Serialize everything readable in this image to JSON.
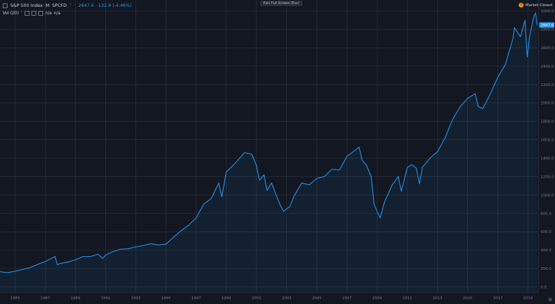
{
  "header": {
    "symbol_name": "S&P 500 Index",
    "interval": "M",
    "ticker": "SPCFD",
    "price": "2847.6",
    "change": "-132.8 (-4.46%)"
  },
  "volume_indicator": {
    "label": "Vol (20)",
    "value1": "n/a",
    "value2": "n/a"
  },
  "tooltip": "Exit Full Screen (Esc)",
  "market_status": {
    "icon": "clock-icon",
    "label": "Market Closed"
  },
  "settings_icon": "gear-icon",
  "colors": {
    "background": "#131722",
    "line": "#2196f3",
    "grid": "#2a2e39",
    "text": "#d1d4dc",
    "axis_text": "#787b86",
    "accent": "#ff9800"
  },
  "chart_data": {
    "type": "area",
    "title": "",
    "xlabel": "",
    "ylabel": "",
    "xlim": [
      1984,
      2019.7
    ],
    "ylim": [
      -60,
      3120
    ],
    "grid": true,
    "x_ticks": [
      {
        "value": 1985,
        "label": "1985"
      },
      {
        "value": 1987,
        "label": "1987"
      },
      {
        "value": 1989,
        "label": "1989"
      },
      {
        "value": 1991,
        "label": "1991"
      },
      {
        "value": 1993,
        "label": "1993"
      },
      {
        "value": 1995,
        "label": "1995"
      },
      {
        "value": 1997,
        "label": "1997"
      },
      {
        "value": 1999,
        "label": "1999"
      },
      {
        "value": 2001,
        "label": "2001"
      },
      {
        "value": 2003,
        "label": "2003"
      },
      {
        "value": 2005,
        "label": "2005"
      },
      {
        "value": 2007,
        "label": "2007"
      },
      {
        "value": 2009,
        "label": "2009"
      },
      {
        "value": 2011,
        "label": "2011"
      },
      {
        "value": 2013,
        "label": "2013"
      },
      {
        "value": 2015,
        "label": "2015"
      },
      {
        "value": 2017,
        "label": "2017"
      },
      {
        "value": 2019,
        "label": "2019"
      }
    ],
    "y_ticks": [
      {
        "value": 0,
        "label": "0.0"
      },
      {
        "value": 200,
        "label": "200.0"
      },
      {
        "value": 400,
        "label": "400.0"
      },
      {
        "value": 600,
        "label": "600.0"
      },
      {
        "value": 800,
        "label": "800.0"
      },
      {
        "value": 1000,
        "label": "1000.0"
      },
      {
        "value": 1200,
        "label": "1200.0"
      },
      {
        "value": 1400,
        "label": "1400.0"
      },
      {
        "value": 1600,
        "label": "1600.0"
      },
      {
        "value": 1800,
        "label": "1800.0"
      },
      {
        "value": 2000,
        "label": "2000.0"
      },
      {
        "value": 2200,
        "label": "2200.0"
      },
      {
        "value": 2400,
        "label": "2400.0"
      },
      {
        "value": 2600,
        "label": "2600.0"
      },
      {
        "value": 2800,
        "label": "2800.0"
      },
      {
        "value": 3000,
        "label": "3000.0"
      }
    ],
    "last_value": 2847.6,
    "last_value_label": "2847.6",
    "series": [
      {
        "x": [
          1984.0,
          1984.5,
          1985.0,
          1985.5,
          1986.0,
          1986.5,
          1987.0,
          1987.4,
          1987.65,
          1987.8,
          1988.0,
          1988.5,
          1989.0,
          1989.5,
          1990.0,
          1990.5,
          1990.8,
          1991.0,
          1991.5,
          1992.0,
          1992.5,
          1993.0,
          1993.5,
          1994.0,
          1994.5,
          1995.0,
          1995.5,
          1996.0,
          1996.5,
          1997.0,
          1997.5,
          1998.0,
          1998.5,
          1998.7,
          1999.0,
          1999.5,
          2000.0,
          2000.2,
          2000.5,
          2000.7,
          2001.0,
          2001.2,
          2001.5,
          2001.7,
          2002.0,
          2002.3,
          2002.6,
          2002.8,
          2003.0,
          2003.2,
          2003.5,
          2004.0,
          2004.5,
          2005.0,
          2005.5,
          2006.0,
          2006.5,
          2007.0,
          2007.5,
          2007.8,
          2008.0,
          2008.3,
          2008.6,
          2008.8,
          2009.0,
          2009.2,
          2009.5,
          2010.0,
          2010.4,
          2010.6,
          2011.0,
          2011.3,
          2011.6,
          2011.8,
          2012.0,
          2012.5,
          2013.0,
          2013.5,
          2014.0,
          2014.5,
          2015.0,
          2015.5,
          2015.7,
          2016.0,
          2016.2,
          2016.5,
          2017.0,
          2017.5,
          2018.0,
          2018.1,
          2018.5,
          2018.8,
          2018.95,
          2019.1,
          2019.3,
          2019.4,
          2019.5,
          2019.6
        ],
        "values": [
          165,
          155,
          170,
          190,
          210,
          245,
          275,
          310,
          330,
          240,
          255,
          270,
          295,
          330,
          330,
          355,
          310,
          345,
          385,
          410,
          415,
          435,
          450,
          470,
          455,
          465,
          540,
          610,
          670,
          750,
          900,
          960,
          1130,
          980,
          1250,
          1330,
          1420,
          1460,
          1450,
          1440,
          1320,
          1160,
          1220,
          1050,
          1130,
          1000,
          880,
          820,
          850,
          870,
          990,
          1130,
          1110,
          1180,
          1200,
          1280,
          1270,
          1420,
          1480,
          1520,
          1380,
          1320,
          1200,
          900,
          820,
          750,
          930,
          1110,
          1200,
          1040,
          1300,
          1330,
          1290,
          1120,
          1300,
          1400,
          1470,
          1620,
          1820,
          1960,
          2050,
          2100,
          1960,
          1940,
          2000,
          2100,
          2280,
          2420,
          2700,
          2820,
          2720,
          2900,
          2500,
          2720,
          2880,
          2950,
          2980,
          2847.6
        ]
      }
    ]
  }
}
